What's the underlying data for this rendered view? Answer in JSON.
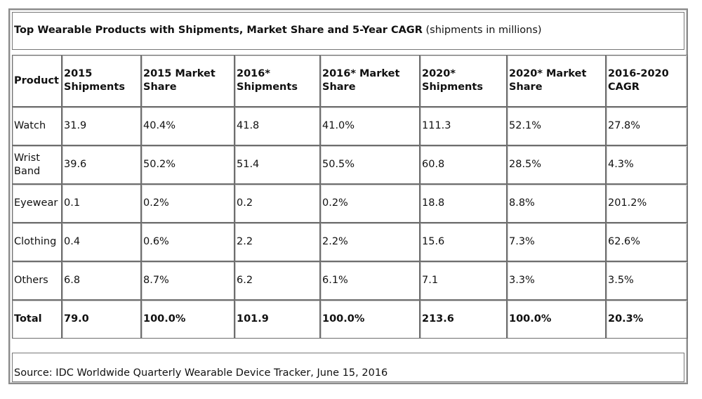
{
  "title": {
    "bold": "Top Wearable Products with Shipments, Market Share and 5-Year CAGR",
    "normal": " (shipments in millions)"
  },
  "columns": [
    "Product",
    "2015 Shipments",
    "2015 Market Share",
    "2016* Shipments",
    "2016* Market Share",
    "2020* Shipments",
    "2020* Market Share",
    "2016-2020 CAGR"
  ],
  "rows": [
    [
      "Watch",
      "31.9",
      "40.4%",
      "41.8",
      "41.0%",
      "111.3",
      "52.1%",
      "27.8%"
    ],
    [
      "Wrist Band",
      "39.6",
      "50.2%",
      "51.4",
      "50.5%",
      "60.8",
      "28.5%",
      "4.3%"
    ],
    [
      "Eyewear",
      "0.1",
      "0.2%",
      "0.2",
      "0.2%",
      "18.8",
      "8.8%",
      "201.2%"
    ],
    [
      "Clothing",
      "0.4",
      "0.6%",
      "2.2",
      "2.2%",
      "15.6",
      "7.3%",
      "62.6%"
    ],
    [
      "Others",
      "6.8",
      "8.7%",
      "6.2",
      "6.1%",
      "7.1",
      "3.3%",
      "3.5%"
    ]
  ],
  "total": [
    "Total",
    "79.0",
    "100.0%",
    "101.9",
    "100.0%",
    "213.6",
    "100.0%",
    "20.3%"
  ],
  "source": "Source: IDC Worldwide Quarterly Wearable Device Tracker, June 15, 2016"
}
